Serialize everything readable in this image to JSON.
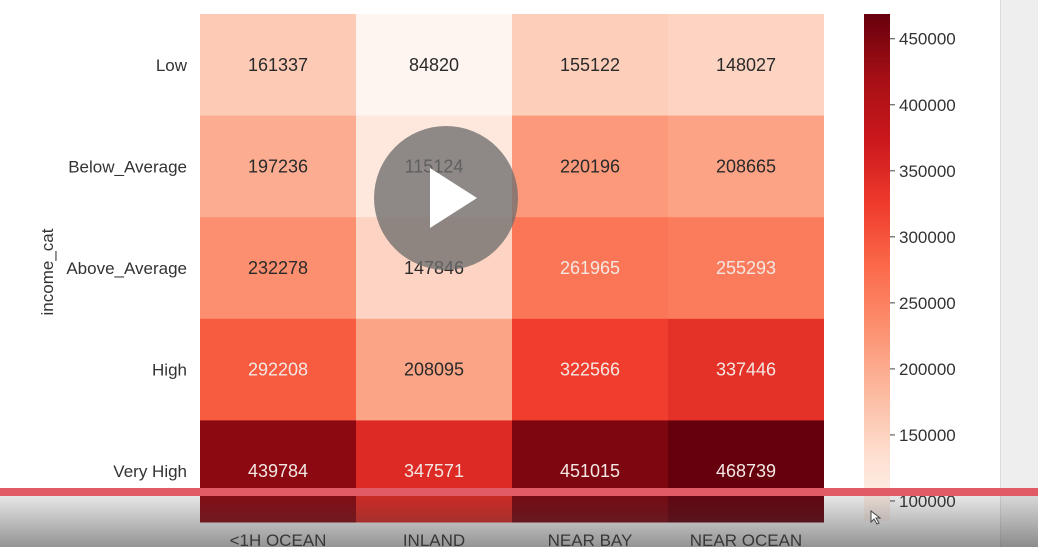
{
  "chart_data": {
    "type": "heatmap",
    "ylabel": "income_cat",
    "xlabel": "",
    "rows": [
      "Low",
      "Below_Average",
      "Above_Average",
      "High",
      "Very High"
    ],
    "columns": [
      "<1H OCEAN",
      "INLAND",
      "NEAR BAY",
      "NEAR OCEAN"
    ],
    "values": [
      [
        161337,
        84820,
        155122,
        148027
      ],
      [
        197236,
        115124,
        220196,
        208665
      ],
      [
        232278,
        147846,
        261965,
        255293
      ],
      [
        292208,
        208095,
        322566,
        337446
      ],
      [
        439784,
        347571,
        451015,
        468739
      ]
    ],
    "colorbar": {
      "ticks": [
        "450000",
        "400000",
        "350000",
        "300000",
        "250000",
        "200000",
        "150000",
        "100000"
      ],
      "min": 84820,
      "max": 468739,
      "colormap": "Reds"
    }
  },
  "player": {
    "progress_color": "#e05b65",
    "play_icon": "play-icon"
  }
}
